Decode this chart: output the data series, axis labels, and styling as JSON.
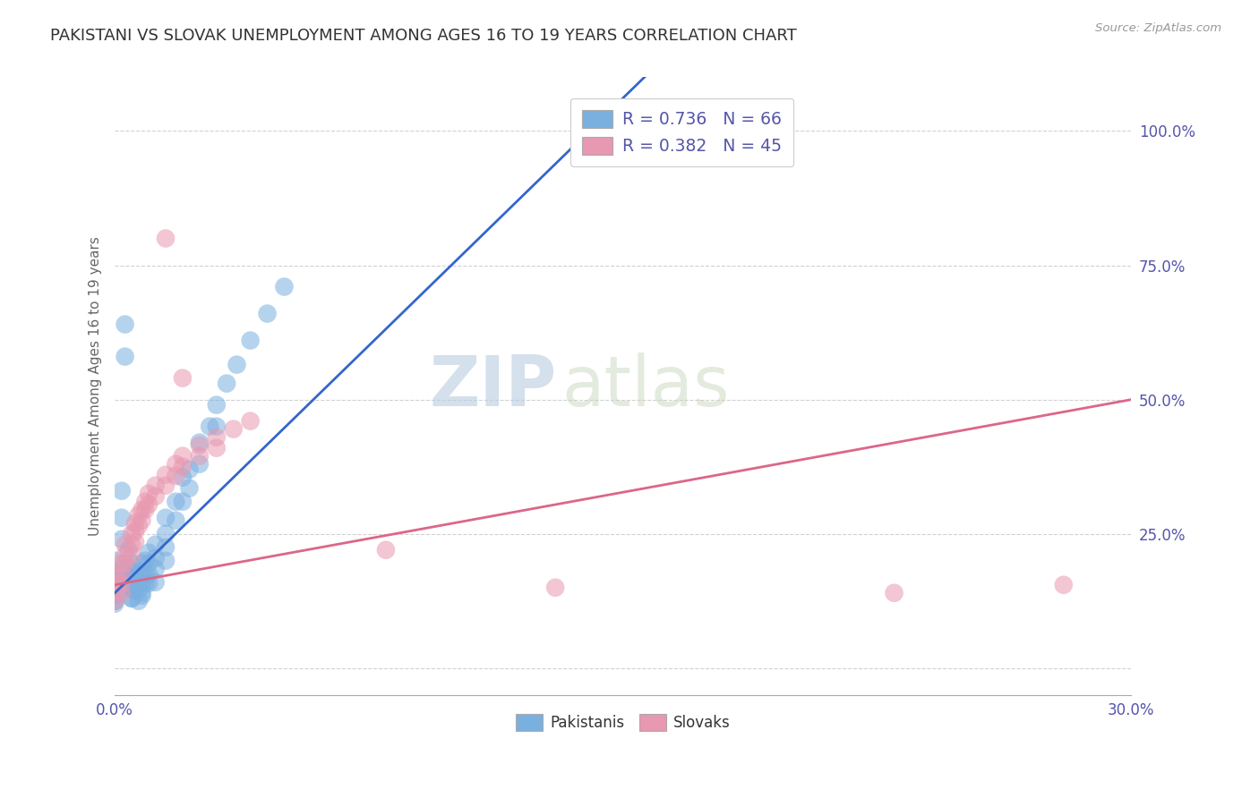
{
  "title": "PAKISTANI VS SLOVAK UNEMPLOYMENT AMONG AGES 16 TO 19 YEARS CORRELATION CHART",
  "source_text": "Source: ZipAtlas.com",
  "ylabel": "Unemployment Among Ages 16 to 19 years",
  "xlim": [
    0.0,
    0.3
  ],
  "ylim": [
    -0.05,
    1.1
  ],
  "yticks": [
    0.0,
    0.25,
    0.5,
    0.75,
    1.0
  ],
  "ytick_labels": [
    "",
    "25.0%",
    "50.0%",
    "75.0%",
    "100.0%"
  ],
  "xticks": [
    0.0,
    0.05,
    0.1,
    0.15,
    0.2,
    0.25,
    0.3
  ],
  "xtick_labels": [
    "0.0%",
    "",
    "",
    "",
    "",
    "",
    "30.0%"
  ],
  "legend_items": [
    {
      "label": "R = 0.736   N = 66",
      "color": "#a8c8f0"
    },
    {
      "label": "R = 0.382   N = 45",
      "color": "#f0a8b8"
    }
  ],
  "legend_labels_bottom": [
    "Pakistanis",
    "Slovaks"
  ],
  "watermark_zip": "ZIP",
  "watermark_atlas": "atlas",
  "pakistani_color": "#7ab0e0",
  "slovak_color": "#e898b0",
  "background_color": "#ffffff",
  "grid_color": "#cccccc",
  "title_color": "#333333",
  "axis_label_color": "#5555aa",
  "pak_line_color": "#3366cc",
  "slo_line_color": "#dd6688",
  "pakistani_scatter": [
    [
      0.0,
      0.2
    ],
    [
      0.0,
      0.165
    ],
    [
      0.0,
      0.14
    ],
    [
      0.0,
      0.125
    ],
    [
      0.002,
      0.33
    ],
    [
      0.002,
      0.28
    ],
    [
      0.002,
      0.24
    ],
    [
      0.003,
      0.64
    ],
    [
      0.003,
      0.58
    ],
    [
      0.004,
      0.22
    ],
    [
      0.004,
      0.185
    ],
    [
      0.004,
      0.17
    ],
    [
      0.005,
      0.195
    ],
    [
      0.005,
      0.165
    ],
    [
      0.005,
      0.15
    ],
    [
      0.005,
      0.13
    ],
    [
      0.006,
      0.18
    ],
    [
      0.006,
      0.155
    ],
    [
      0.006,
      0.145
    ],
    [
      0.007,
      0.175
    ],
    [
      0.007,
      0.16
    ],
    [
      0.007,
      0.145
    ],
    [
      0.007,
      0.125
    ],
    [
      0.008,
      0.195
    ],
    [
      0.008,
      0.175
    ],
    [
      0.008,
      0.158
    ],
    [
      0.008,
      0.14
    ],
    [
      0.009,
      0.2
    ],
    [
      0.009,
      0.175
    ],
    [
      0.009,
      0.158
    ],
    [
      0.01,
      0.215
    ],
    [
      0.01,
      0.195
    ],
    [
      0.01,
      0.175
    ],
    [
      0.01,
      0.158
    ],
    [
      0.012,
      0.23
    ],
    [
      0.012,
      0.205
    ],
    [
      0.012,
      0.185
    ],
    [
      0.015,
      0.28
    ],
    [
      0.015,
      0.25
    ],
    [
      0.015,
      0.225
    ],
    [
      0.015,
      0.2
    ],
    [
      0.018,
      0.31
    ],
    [
      0.018,
      0.275
    ],
    [
      0.02,
      0.355
    ],
    [
      0.02,
      0.31
    ],
    [
      0.022,
      0.37
    ],
    [
      0.022,
      0.335
    ],
    [
      0.025,
      0.42
    ],
    [
      0.025,
      0.38
    ],
    [
      0.028,
      0.45
    ],
    [
      0.03,
      0.49
    ],
    [
      0.03,
      0.45
    ],
    [
      0.033,
      0.53
    ],
    [
      0.036,
      0.565
    ],
    [
      0.04,
      0.61
    ],
    [
      0.045,
      0.66
    ],
    [
      0.05,
      0.71
    ],
    [
      0.0,
      0.155
    ],
    [
      0.0,
      0.135
    ],
    [
      0.0,
      0.12
    ],
    [
      0.002,
      0.185
    ],
    [
      0.002,
      0.165
    ],
    [
      0.005,
      0.148
    ],
    [
      0.005,
      0.13
    ],
    [
      0.008,
      0.135
    ],
    [
      0.012,
      0.16
    ]
  ],
  "slovak_scatter": [
    [
      0.0,
      0.175
    ],
    [
      0.0,
      0.155
    ],
    [
      0.0,
      0.14
    ],
    [
      0.0,
      0.125
    ],
    [
      0.002,
      0.195
    ],
    [
      0.002,
      0.175
    ],
    [
      0.002,
      0.158
    ],
    [
      0.002,
      0.14
    ],
    [
      0.003,
      0.23
    ],
    [
      0.003,
      0.21
    ],
    [
      0.003,
      0.195
    ],
    [
      0.005,
      0.25
    ],
    [
      0.005,
      0.23
    ],
    [
      0.005,
      0.21
    ],
    [
      0.006,
      0.27
    ],
    [
      0.006,
      0.255
    ],
    [
      0.006,
      0.235
    ],
    [
      0.007,
      0.285
    ],
    [
      0.007,
      0.265
    ],
    [
      0.008,
      0.295
    ],
    [
      0.008,
      0.275
    ],
    [
      0.009,
      0.31
    ],
    [
      0.009,
      0.295
    ],
    [
      0.01,
      0.325
    ],
    [
      0.01,
      0.305
    ],
    [
      0.012,
      0.34
    ],
    [
      0.012,
      0.32
    ],
    [
      0.015,
      0.36
    ],
    [
      0.015,
      0.34
    ],
    [
      0.015,
      0.8
    ],
    [
      0.018,
      0.38
    ],
    [
      0.018,
      0.358
    ],
    [
      0.02,
      0.395
    ],
    [
      0.02,
      0.375
    ],
    [
      0.02,
      0.54
    ],
    [
      0.025,
      0.415
    ],
    [
      0.025,
      0.395
    ],
    [
      0.03,
      0.43
    ],
    [
      0.03,
      0.41
    ],
    [
      0.035,
      0.445
    ],
    [
      0.04,
      0.46
    ],
    [
      0.08,
      0.22
    ],
    [
      0.13,
      0.15
    ],
    [
      0.23,
      0.14
    ],
    [
      0.28,
      0.155
    ]
  ],
  "pak_line_x0": 0.0,
  "pak_line_y0": 0.14,
  "pak_line_x1": 0.14,
  "pak_line_y1": 1.0,
  "slo_line_x0": 0.0,
  "slo_line_y0": 0.155,
  "slo_line_x1": 0.3,
  "slo_line_y1": 0.5
}
